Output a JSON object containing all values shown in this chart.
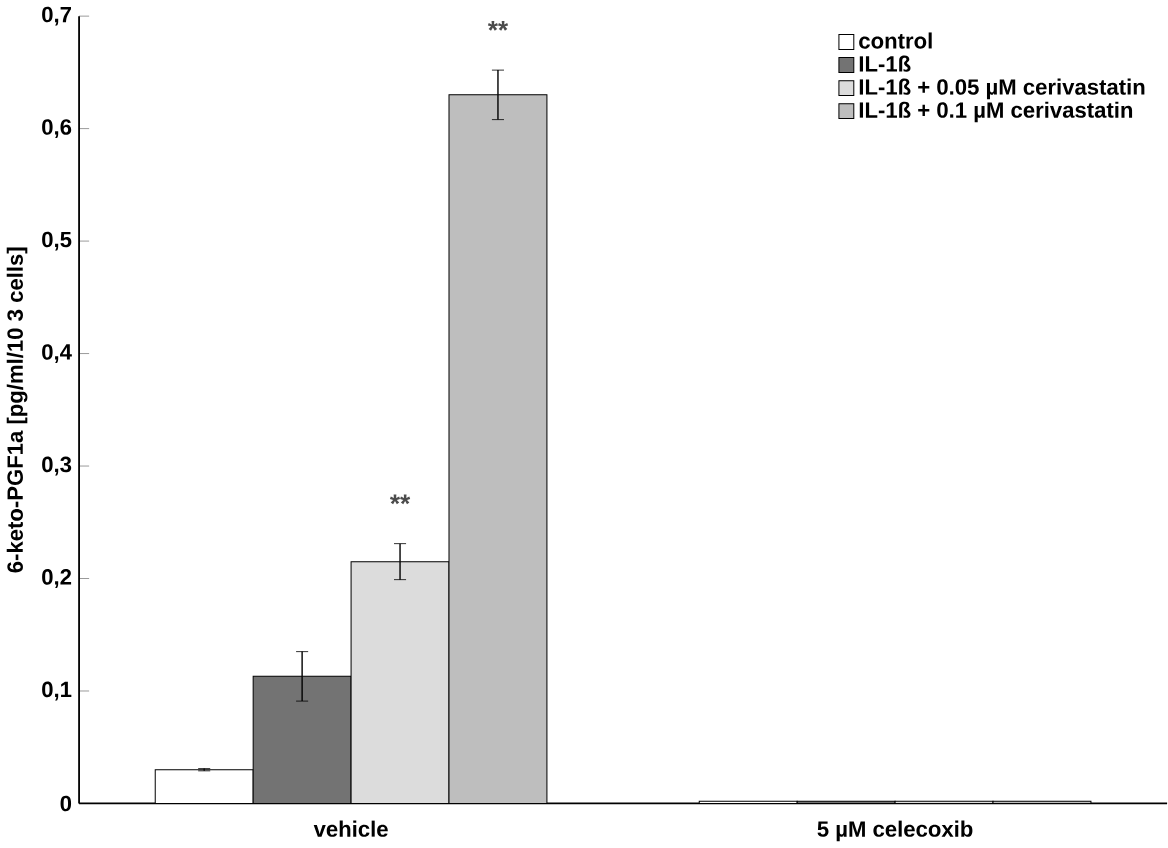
{
  "chart_data": {
    "type": "bar",
    "ylabel": "6-keto-PGF1a [pg/ml/10 3 cells]",
    "categories": [
      "vehicle",
      "5 µM celecoxib"
    ],
    "series": [
      {
        "name": "control",
        "color": "#ffffff",
        "values": [
          0.03,
          0.002
        ],
        "errors": [
          0.001,
          null
        ]
      },
      {
        "name": "IL-1ß",
        "color": "#737373",
        "values": [
          0.113,
          0.002
        ],
        "errors": [
          0.022,
          null
        ]
      },
      {
        "name": "IL-1ß +  0.05 µM cerivastatin",
        "color": "#dcdcdc",
        "values": [
          0.215,
          0.002
        ],
        "errors": [
          0.016,
          null
        ]
      },
      {
        "name": "IL-1ß + 0.1 µM cerivastatin",
        "color": "#bebebe",
        "values": [
          0.63,
          0.002
        ],
        "errors": [
          0.022,
          null
        ]
      }
    ],
    "ylim": [
      0,
      0.7
    ],
    "yticks": [
      0,
      {
        "value": 0.1,
        "label": "0,1"
      },
      {
        "value": 0.2,
        "label": "0,2"
      },
      {
        "value": 0.3,
        "label": "0,3"
      },
      {
        "value": 0.4,
        "label": "0,4"
      },
      {
        "value": 0.5,
        "label": "0,5"
      },
      {
        "value": 0.6,
        "label": "0,6"
      },
      {
        "value": 0.7,
        "label": "0,7"
      }
    ],
    "annotations": [
      "**",
      "**"
    ],
    "legend": "top right",
    "grid": false
  }
}
